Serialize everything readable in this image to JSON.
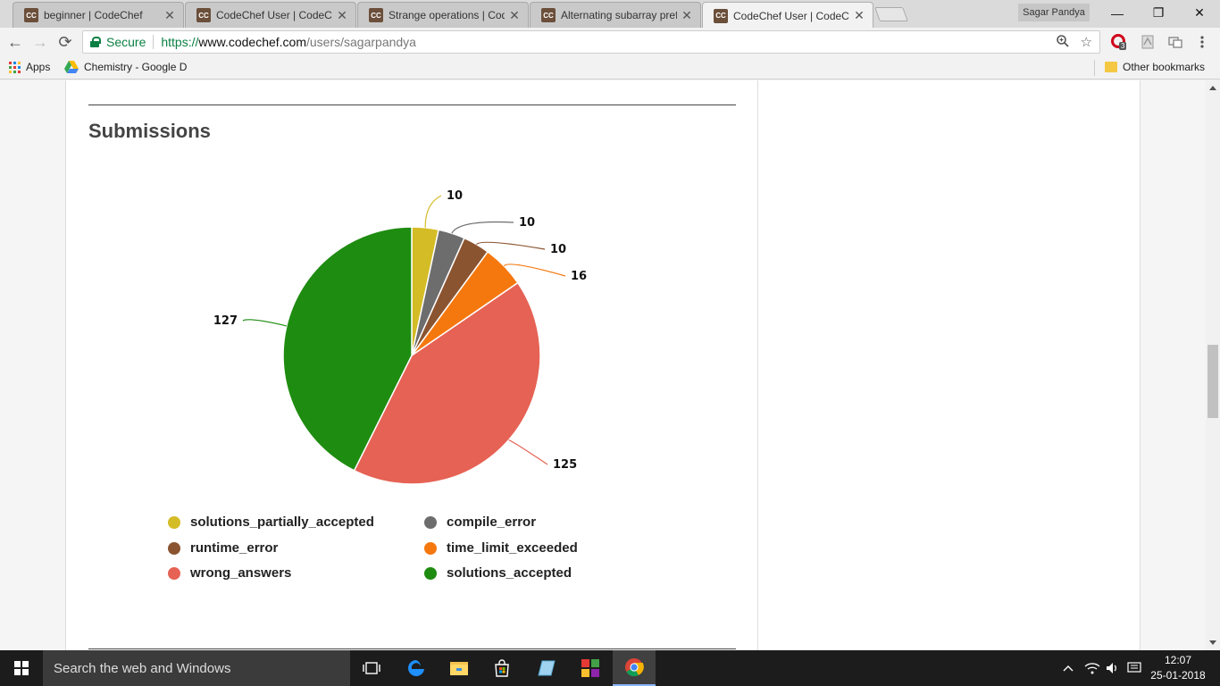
{
  "browser": {
    "tabs": [
      {
        "favicon": "CC",
        "title": "beginner | CodeChef",
        "active": false
      },
      {
        "favicon": "CC",
        "title": "CodeChef User | CodeChef",
        "active": false
      },
      {
        "favicon": "CC",
        "title": "Strange operations | CodeChef",
        "active": false
      },
      {
        "favicon": "CC",
        "title": "Alternating subarray prefix",
        "active": false
      },
      {
        "favicon": "CC",
        "title": "CodeChef User | CodeChef",
        "active": true
      }
    ],
    "close_glyph": "✕",
    "profile_name": "Sagar Pandya",
    "window_buttons": {
      "minimize": "—",
      "restore": "❐",
      "close": "✕"
    },
    "nav": {
      "back": "←",
      "forward": "→",
      "reload": "⟳"
    },
    "security_label": "Secure",
    "url": {
      "scheme": "https://",
      "host": "www.codechef.com",
      "path": "/users/sagarpandya"
    },
    "omnibox_icons": {
      "zoom": "zoom-icon",
      "bookmark_star": "☆"
    },
    "extension_badge": "3",
    "bookmarks": {
      "apps_label": "Apps",
      "items": [
        "Chemistry - Google D"
      ],
      "other_label": "Other bookmarks"
    }
  },
  "page": {
    "section_title": "Submissions"
  },
  "chart_data": {
    "type": "pie",
    "title": "Submissions",
    "series": [
      {
        "name": "solutions_partially_accepted",
        "value": 10,
        "color": "#d4bc26"
      },
      {
        "name": "compile_error",
        "value": 10,
        "color": "#6d6d6d"
      },
      {
        "name": "runtime_error",
        "value": 10,
        "color": "#8b5430"
      },
      {
        "name": "time_limit_exceeded",
        "value": 16,
        "color": "#f5780f"
      },
      {
        "name": "wrong_answers",
        "value": 125,
        "color": "#e66254"
      },
      {
        "name": "solutions_accepted",
        "value": 127,
        "color": "#1e8c10"
      }
    ],
    "legend_position": "bottom"
  },
  "taskbar": {
    "search_placeholder": "Search the web and Windows",
    "time": "12:07",
    "date": "25-01-2018"
  }
}
